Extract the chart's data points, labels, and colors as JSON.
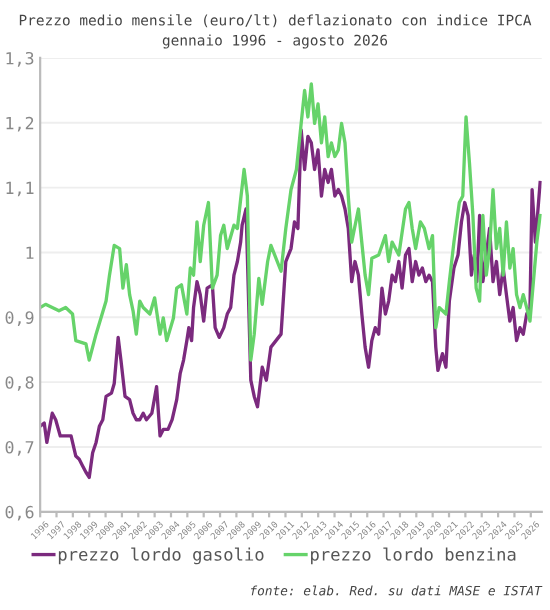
{
  "chart_data": {
    "type": "line",
    "title": "Prezzo medio mensile (euro/lt) deflazionato con indice IPCA",
    "subtitle": "gennaio 1996 - agosto 2026",
    "annotations": [
      "fonte: elab. Red. su dati MASE e ISTAT"
    ],
    "series": [
      {
        "name": "prezzo lordo gasolio",
        "color": "#7b2a7e",
        "x": [
          1996.0,
          1996.25,
          1996.41,
          1996.74,
          1996.95,
          1997.23,
          1997.56,
          1997.89,
          1998.18,
          1998.39,
          1998.59,
          1998.8,
          1999.0,
          1999.21,
          1999.42,
          1999.62,
          1999.83,
          2000.03,
          2000.36,
          2000.53,
          2000.77,
          2000.94,
          2001.19,
          2001.47,
          2001.68,
          2001.88,
          2002.09,
          2002.3,
          2002.5,
          2002.83,
          2003.12,
          2003.33,
          2003.53,
          2003.82,
          2004.07,
          2004.35,
          2004.56,
          2004.77,
          2004.97,
          2005.09,
          2005.26,
          2005.38,
          2005.59,
          2005.79,
          2006.0,
          2006.21,
          2006.53,
          2006.7,
          2006.95,
          2007.23,
          2007.44,
          2007.65,
          2007.85,
          2008.06,
          2008.26,
          2008.35,
          2008.59,
          2008.88,
          2009.09,
          2009.29,
          2009.58,
          2009.83,
          2010.11,
          2010.73,
          2011.02,
          2011.34,
          2011.55,
          2011.76,
          2011.96,
          2012.17,
          2012.37,
          2012.58,
          2012.78,
          2012.99,
          2013.2,
          2013.4,
          2013.61,
          2013.81,
          2014.02,
          2014.23,
          2014.43,
          2014.64,
          2014.84,
          2015.05,
          2015.25,
          2015.46,
          2015.67,
          2015.87,
          2016.08,
          2016.28,
          2016.49,
          2016.7,
          2016.9,
          2017.11,
          2017.31,
          2017.52,
          2017.72,
          2017.93,
          2018.13,
          2018.34,
          2018.55,
          2018.75,
          2018.96,
          2019.16,
          2019.37,
          2019.58,
          2019.78,
          2019.99,
          2020.19,
          2020.32,
          2020.6,
          2020.81,
          2021.02,
          2021.3,
          2021.55,
          2021.76,
          2021.96,
          2022.17,
          2022.37,
          2022.54,
          2022.7,
          2022.87,
          2023.07,
          2023.28,
          2023.48,
          2023.69,
          2023.9,
          2024.1,
          2024.31,
          2024.51,
          2024.72,
          2024.92,
          2025.13,
          2025.34,
          2025.54,
          2025.75,
          2025.95,
          2026.08,
          2026.28,
          2026.57
        ],
        "values": [
          0.732,
          0.737,
          0.707,
          0.752,
          0.742,
          0.717,
          0.717,
          0.717,
          0.686,
          0.681,
          0.671,
          0.661,
          0.653,
          0.691,
          0.707,
          0.732,
          0.742,
          0.778,
          0.783,
          0.798,
          0.869,
          0.834,
          0.778,
          0.773,
          0.752,
          0.742,
          0.742,
          0.752,
          0.742,
          0.752,
          0.793,
          0.717,
          0.727,
          0.727,
          0.742,
          0.773,
          0.813,
          0.834,
          0.864,
          0.884,
          0.864,
          0.915,
          0.955,
          0.935,
          0.894,
          0.945,
          0.95,
          0.884,
          0.869,
          0.884,
          0.905,
          0.915,
          0.965,
          0.986,
          1.016,
          1.042,
          1.067,
          0.803,
          0.778,
          0.762,
          0.823,
          0.803,
          0.854,
          0.874,
          0.986,
          1.006,
          1.047,
          1.037,
          1.189,
          1.128,
          1.179,
          1.169,
          1.128,
          1.158,
          1.087,
          1.128,
          1.108,
          1.128,
          1.087,
          1.097,
          1.087,
          1.067,
          1.037,
          0.955,
          0.986,
          0.965,
          0.905,
          0.854,
          0.823,
          0.864,
          0.884,
          0.874,
          0.945,
          0.905,
          0.925,
          0.965,
          0.955,
          0.986,
          0.945,
          0.996,
          1.006,
          0.955,
          0.986,
          0.965,
          0.976,
          0.955,
          0.965,
          0.955,
          0.854,
          0.818,
          0.844,
          0.823,
          0.925,
          0.976,
          0.996,
          1.047,
          1.077,
          1.057,
          0.965,
          0.996,
          0.955,
          1.057,
          0.955,
          0.996,
          1.037,
          0.955,
          0.986,
          0.935,
          0.976,
          0.935,
          0.894,
          0.915,
          0.864,
          0.884,
          0.874,
          0.905,
          0.915,
          1.097,
          1.016,
          1.108
        ]
      },
      {
        "name": "prezzo lordo benzina",
        "color": "#66d36a",
        "x": [
          1996.0,
          1996.33,
          1997.15,
          1997.56,
          1997.98,
          1998.18,
          1998.8,
          1999.0,
          1999.42,
          2000.03,
          2000.24,
          2000.53,
          2000.86,
          2001.06,
          2001.27,
          2001.47,
          2001.68,
          2001.88,
          2002.09,
          2002.3,
          2002.71,
          2003.0,
          2003.33,
          2003.53,
          2003.74,
          2004.15,
          2004.35,
          2004.64,
          2004.97,
          2005.18,
          2005.38,
          2005.59,
          2005.79,
          2006.0,
          2006.29,
          2006.53,
          2006.82,
          2007.03,
          2007.23,
          2007.44,
          2007.85,
          2008.06,
          2008.26,
          2008.47,
          2008.67,
          2008.88,
          2009.09,
          2009.37,
          2009.58,
          2009.91,
          2010.11,
          2010.73,
          2011.02,
          2011.34,
          2011.67,
          2011.96,
          2012.17,
          2012.37,
          2012.58,
          2012.78,
          2012.99,
          2013.2,
          2013.4,
          2013.61,
          2013.81,
          2014.02,
          2014.23,
          2014.43,
          2014.64,
          2014.84,
          2015.05,
          2015.46,
          2015.87,
          2016.08,
          2016.28,
          2016.7,
          2017.11,
          2017.31,
          2017.52,
          2017.93,
          2018.34,
          2018.55,
          2018.75,
          2018.96,
          2019.25,
          2019.49,
          2019.78,
          2019.99,
          2020.19,
          2020.4,
          2020.81,
          2021.02,
          2021.3,
          2021.63,
          2021.84,
          2022.04,
          2022.25,
          2022.46,
          2022.66,
          2022.87,
          2023.07,
          2023.28,
          2023.48,
          2023.69,
          2023.9,
          2024.1,
          2024.31,
          2024.51,
          2024.72,
          2024.92,
          2025.13,
          2025.34,
          2025.54,
          2025.75,
          2025.95,
          2026.16,
          2026.37,
          2026.57
        ],
        "values": [
          0.915,
          0.92,
          0.91,
          0.915,
          0.905,
          0.864,
          0.859,
          0.834,
          0.874,
          0.925,
          0.965,
          1.011,
          1.006,
          0.945,
          0.981,
          0.935,
          0.91,
          0.874,
          0.925,
          0.915,
          0.905,
          0.93,
          0.874,
          0.899,
          0.864,
          0.899,
          0.945,
          0.95,
          0.905,
          0.976,
          0.965,
          1.047,
          0.986,
          1.042,
          1.077,
          0.945,
          0.965,
          1.026,
          1.042,
          1.006,
          1.042,
          1.037,
          1.082,
          1.128,
          1.087,
          0.834,
          0.874,
          0.96,
          0.92,
          0.986,
          1.011,
          0.971,
          1.037,
          1.097,
          1.128,
          1.199,
          1.25,
          1.209,
          1.26,
          1.199,
          1.229,
          1.169,
          1.209,
          1.148,
          1.169,
          1.148,
          1.158,
          1.199,
          1.169,
          1.087,
          1.016,
          1.067,
          0.965,
          0.935,
          0.991,
          0.996,
          1.026,
          0.986,
          1.016,
          0.996,
          1.067,
          1.077,
          1.037,
          1.006,
          1.047,
          1.037,
          1.006,
          1.026,
          0.884,
          0.915,
          0.905,
          0.955,
          1.016,
          1.077,
          1.087,
          1.209,
          1.138,
          1.057,
          0.945,
          0.925,
          1.057,
          0.965,
          1.006,
          1.097,
          1.006,
          1.037,
          0.965,
          1.047,
          0.976,
          1.006,
          0.935,
          0.915,
          0.935,
          0.915,
          0.894,
          0.955,
          1.016,
          1.057
        ]
      }
    ],
    "xlim": [
      1996,
      2026.67
    ],
    "xticks": [
      1996,
      1997,
      1998,
      1999,
      2000,
      2001,
      2002,
      2003,
      2004,
      2005,
      2006,
      2007,
      2008,
      2009,
      2010,
      2011,
      2012,
      2013,
      2014,
      2015,
      2016,
      2017,
      2018,
      2019,
      2020,
      2021,
      2022,
      2023,
      2024,
      2025,
      2026
    ],
    "ylim": [
      0.6,
      1.3
    ],
    "yticks": [
      {
        "value": 0.6,
        "label": "0,6"
      },
      {
        "value": 0.7,
        "label": "0,7"
      },
      {
        "value": 0.8,
        "label": "0,8"
      },
      {
        "value": 0.9,
        "label": "0,9"
      },
      1,
      {
        "value": 1.1,
        "label": "1,1"
      },
      {
        "value": 1.2,
        "label": "1,2"
      },
      {
        "value": 1.3,
        "label": "1,3"
      }
    ],
    "grid": "y",
    "legend": "bottom",
    "line_style": "solid",
    "marker": "none"
  }
}
